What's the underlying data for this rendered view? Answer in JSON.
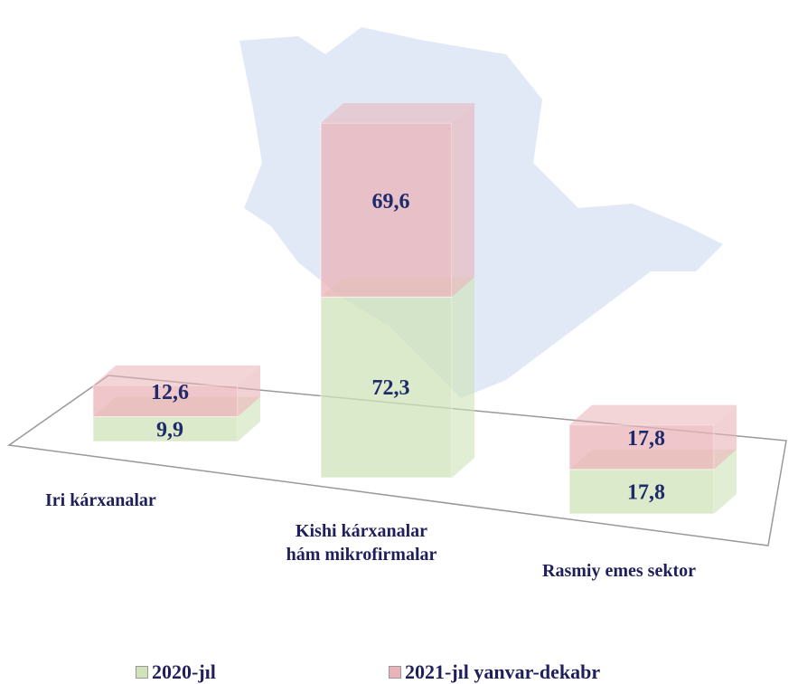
{
  "chart_data": {
    "type": "bar",
    "stacked": true,
    "categories": [
      "Iri kárxanalar",
      "Kishi kárxanalar\nhám mikrofirmalar",
      "Rasmiy emes sektor"
    ],
    "series": [
      {
        "name": "2020-jıl",
        "color": "#cfe3b8",
        "values": [
          9.9,
          72.3,
          17.8
        ],
        "value_labels": [
          "9,9",
          "72,3",
          "17,8"
        ]
      },
      {
        "name": "2021-jıl yanvar-dekabr",
        "color": "#e9b3b8",
        "values": [
          12.6,
          69.6,
          17.8
        ],
        "value_labels": [
          "12,6",
          "69,6",
          "17,8"
        ]
      }
    ]
  }
}
